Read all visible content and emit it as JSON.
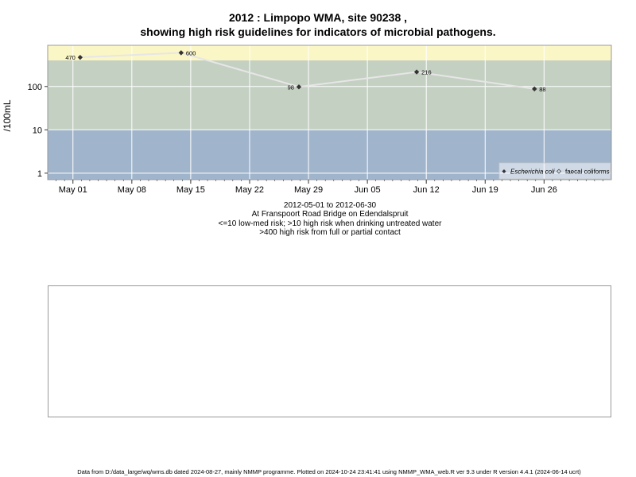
{
  "title_line1": "2012 : Limpopo WMA, site 90238 ,",
  "title_line2": "showing high risk guidelines for indicators of microbial pathogens.",
  "subtitle": [
    "2012-05-01 to 2012-06-30",
    "At Franspoort Road Bridge on Edendalspruit",
    "<=10 low-med risk; >10 high risk when drinking untreated water",
    ">400 high risk from full or partial contact"
  ],
  "footer": "Data from D:/data_large/wq/wms.db dated 2024-08-27, mainly NMMP programme. Plotted on 2024-10-24 23:41:41 using NMMP_WMA_web.R ver 9.3 under R version 4.4.1 (2024-06-14 ucrt)",
  "colors": {
    "band_low": "#a0b4cc",
    "band_mid": "#c4d0c2",
    "band_high": "#fbf6c6",
    "line": "#e6e6e6",
    "point": "#333333",
    "grid": "#ffffff"
  },
  "chart_data": {
    "type": "line",
    "ylabel": "/100mL",
    "y_scale": "log",
    "x_range": [
      "2012-04-28",
      "2012-07-04"
    ],
    "y_range_log": [
      -0.15,
      2.95
    ],
    "y_ticks": [
      1,
      10,
      100
    ],
    "y_tick_labels": [
      "1",
      "10",
      "100"
    ],
    "x_ticks": [
      "2012-05-01",
      "2012-05-08",
      "2012-05-15",
      "2012-05-22",
      "2012-05-29",
      "2012-06-05",
      "2012-06-12",
      "2012-06-19",
      "2012-06-26"
    ],
    "x_tick_labels": [
      "May 01",
      "May 08",
      "May 15",
      "May 22",
      "May 29",
      "Jun 05",
      "Jun 12",
      "Jun 19",
      "Jun 26"
    ],
    "bands": [
      {
        "from": 0.01,
        "to": 10,
        "color": "#a0b4cc"
      },
      {
        "from": 10,
        "to": 400,
        "color": "#c4d0c2"
      },
      {
        "from": 400,
        "to": 100000,
        "color": "#fbf6c6"
      }
    ],
    "grid": true,
    "legend_position": "bottom-right",
    "legend": [
      "Escherichia coli",
      "faecal coliforms"
    ],
    "series": [
      {
        "name": "Escherichia coli",
        "marker": "diamond",
        "x": [
          "2012-05-02",
          "2012-05-14",
          "2012-05-28",
          "2012-06-11",
          "2012-06-25"
        ],
        "y": [
          470,
          600,
          98,
          216,
          88
        ],
        "labels": [
          "470",
          "600",
          "98",
          "216",
          "88"
        ]
      }
    ]
  }
}
